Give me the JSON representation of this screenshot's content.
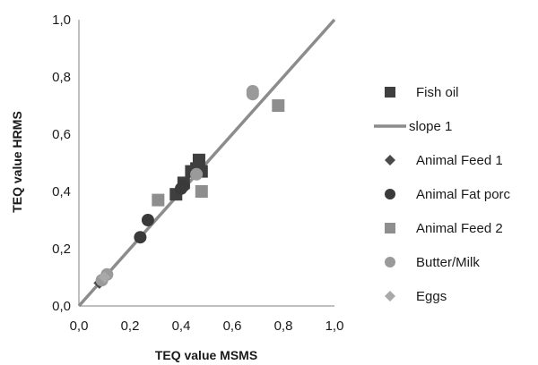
{
  "chart_data": {
    "type": "scatter",
    "title": "",
    "xlabel": "TEQ value MSMS",
    "ylabel": "TEQ value HRMS",
    "xlim": [
      0,
      1
    ],
    "ylim": [
      0,
      1
    ],
    "x_ticks": [
      "0,0",
      "0,2",
      "0,4",
      "0,6",
      "0,8",
      "1,0"
    ],
    "y_ticks": [
      "0,0",
      "0,2",
      "0,4",
      "0,6",
      "0,8",
      "1,0"
    ],
    "grid": false,
    "legend_position": "right",
    "series": [
      {
        "name": "Fish oil",
        "marker": "square",
        "color": "#3f3f3f",
        "points": [
          [
            0.38,
            0.39
          ],
          [
            0.41,
            0.43
          ],
          [
            0.44,
            0.47
          ],
          [
            0.46,
            0.48
          ],
          [
            0.47,
            0.51
          ],
          [
            0.48,
            0.47
          ]
        ]
      },
      {
        "name": "slope 1",
        "line": true,
        "color": "#8c8c8c",
        "points": [
          [
            0.0,
            0.0
          ],
          [
            1.0,
            1.0
          ]
        ]
      },
      {
        "name": "Animal Feed 1",
        "marker": "diamond",
        "color": "#4a4a4a",
        "points": [
          [
            0.08,
            0.08
          ]
        ]
      },
      {
        "name": "Animal Fat porc",
        "marker": "circle",
        "color": "#3a3a3a",
        "points": [
          [
            0.24,
            0.24
          ],
          [
            0.27,
            0.3
          ],
          [
            0.4,
            0.41
          ],
          [
            0.41,
            0.42
          ]
        ]
      },
      {
        "name": "Animal Feed 2",
        "marker": "square",
        "color": "#8e8e8e",
        "points": [
          [
            0.31,
            0.37
          ],
          [
            0.48,
            0.4
          ],
          [
            0.78,
            0.7
          ]
        ]
      },
      {
        "name": "Butter/Milk",
        "marker": "circle",
        "color": "#9a9a9a",
        "points": [
          [
            0.09,
            0.09
          ],
          [
            0.11,
            0.11
          ],
          [
            0.46,
            0.46
          ],
          [
            0.68,
            0.74
          ],
          [
            0.68,
            0.75
          ]
        ]
      },
      {
        "name": "Eggs",
        "marker": "diamond",
        "color": "#a9a9a9",
        "points": [
          [
            0.1,
            0.1
          ]
        ]
      }
    ]
  }
}
